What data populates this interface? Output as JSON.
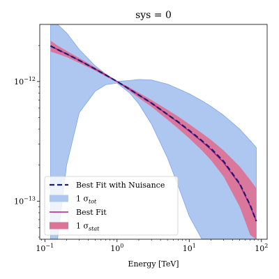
{
  "chart_data": {
    "type": "line",
    "title": "sys = 0",
    "xlabel": "Energy [TeV]",
    "ylabel": "",
    "xscale": "log",
    "yscale": "log",
    "xlim": [
      0.085,
      120
    ],
    "ylim": [
      4.8e-14,
      3e-12
    ],
    "x_ticks": [
      {
        "value": 0.1,
        "base": "10",
        "exp": "−1"
      },
      {
        "value": 1,
        "base": "10",
        "exp": "0"
      },
      {
        "value": 10,
        "base": "10",
        "exp": "1"
      },
      {
        "value": 100,
        "base": "10",
        "exp": "2"
      }
    ],
    "y_ticks": [
      {
        "value": 1e-13,
        "base": "10",
        "exp": "−13"
      },
      {
        "value": 1e-12,
        "base": "10",
        "exp": "−12"
      }
    ],
    "grid": false,
    "legend_position": "lower-left",
    "colors": {
      "tot_band_fill": "#aec7f0",
      "tot_band_edge": "#7ea6e8",
      "stat_band_fill": "#dc7497",
      "best_fit_nuisance": "#1a1f6b",
      "best_fit": "#b0189a"
    },
    "x": [
      0.12,
      0.15,
      0.2,
      0.3,
      0.5,
      0.7,
      1.0,
      1.5,
      2.0,
      3.0,
      5.0,
      7.0,
      10.0,
      15.0,
      20.0,
      30.0,
      50.0,
      70.0,
      85.0
    ],
    "series": [
      {
        "name": "Best Fit with Nuisance",
        "style": "dashed",
        "values": [
          1.98e-12,
          1.85e-12,
          1.7e-12,
          1.5e-12,
          1.27e-12,
          1.13e-12,
          1e-12,
          8.6e-13,
          7.7e-13,
          6.6e-13,
          5.3e-13,
          4.6e-13,
          3.9e-13,
          3.2e-13,
          2.75e-13,
          2.15e-13,
          1.4e-13,
          9.2e-14,
          6.8e-14
        ]
      },
      {
        "name": "Best Fit",
        "style": "solid",
        "values": [
          1.98e-12,
          1.85e-12,
          1.7e-12,
          1.5e-12,
          1.27e-12,
          1.13e-12,
          1e-12,
          8.6e-13,
          7.7e-13,
          6.6e-13,
          5.3e-13,
          4.55e-13,
          3.85e-13,
          3.15e-13,
          2.7e-13,
          2.1e-13,
          1.38e-13,
          9.1e-14,
          6.8e-14
        ]
      },
      {
        "name": "1 σtot",
        "type": "band",
        "upper": [
          3e-12,
          3e-12,
          2.55e-12,
          1.85e-12,
          1.35e-12,
          1.15e-12,
          1e-12,
          1.02e-12,
          1.04e-12,
          1.03e-12,
          9.5e-13,
          8.7e-13,
          7.9e-13,
          6.9e-13,
          6.2e-13,
          5.2e-13,
          4e-13,
          3.2e-13,
          2.8e-13
        ],
        "lower": [
          4.8e-14,
          4.8e-14,
          2e-13,
          5.5e-13,
          8.3e-13,
          9.4e-13,
          9.7e-13,
          8e-13,
          6.5e-13,
          4.4e-13,
          2.3e-13,
          1.35e-13,
          7.5e-14,
          4.8e-14,
          4.8e-14,
          4.8e-14,
          4.8e-14,
          4.8e-14,
          4.8e-14
        ]
      },
      {
        "name": "1 σstat",
        "type": "band",
        "upper": [
          2.2e-12,
          2e-12,
          1.8e-12,
          1.57e-12,
          1.31e-12,
          1.16e-12,
          1.01e-12,
          8.9e-13,
          8.05e-13,
          7e-13,
          5.8e-13,
          5.1e-13,
          4.4e-13,
          3.7e-13,
          3.25e-13,
          2.65e-13,
          1.95e-13,
          1.5e-13,
          1.28e-13
        ],
        "lower": [
          1.78e-12,
          1.7e-12,
          1.6e-12,
          1.43e-12,
          1.23e-12,
          1.1e-12,
          9.9e-13,
          8.3e-13,
          7.3e-13,
          6.15e-13,
          4.8e-13,
          4.05e-13,
          3.35e-13,
          2.65e-13,
          2.2e-13,
          1.6e-13,
          9e-14,
          5.2e-14,
          4.8e-14
        ]
      }
    ],
    "legend": [
      {
        "label": "Best Fit with Nuisance",
        "symbol": "dashed-line",
        "color": "#1a1f6b"
      },
      {
        "label": "1 σ",
        "sub": "tot",
        "symbol": "patch",
        "color": "#aec7f0"
      },
      {
        "label": "Best Fit",
        "symbol": "line",
        "color": "#b0189a"
      },
      {
        "label": "1 σ",
        "sub": "stat",
        "symbol": "patch",
        "color": "#dc7497"
      }
    ]
  }
}
